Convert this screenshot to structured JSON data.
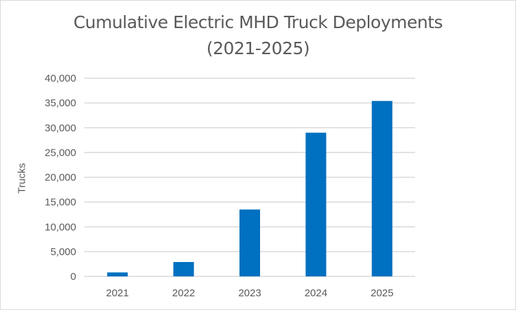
{
  "chart_data": {
    "type": "bar",
    "title": "Cumulative Electric MHD Truck Deployments",
    "subtitle": "(2021-2025)",
    "xlabel": "",
    "ylabel": "Trucks",
    "categories": [
      "2021",
      "2022",
      "2023",
      "2024",
      "2025"
    ],
    "values": [
      800,
      2900,
      13500,
      29000,
      35400
    ],
    "ylim": [
      0,
      40000
    ],
    "yticks": [
      0,
      5000,
      10000,
      15000,
      20000,
      25000,
      30000,
      35000,
      40000
    ],
    "ytick_labels": [
      "0",
      "5,000",
      "10,000",
      "15,000",
      "20,000",
      "25,000",
      "30,000",
      "35,000",
      "40,000"
    ],
    "grid": true,
    "legend": "none",
    "bar_color": "#0070c0",
    "grid_color": "#d9d9d9"
  }
}
